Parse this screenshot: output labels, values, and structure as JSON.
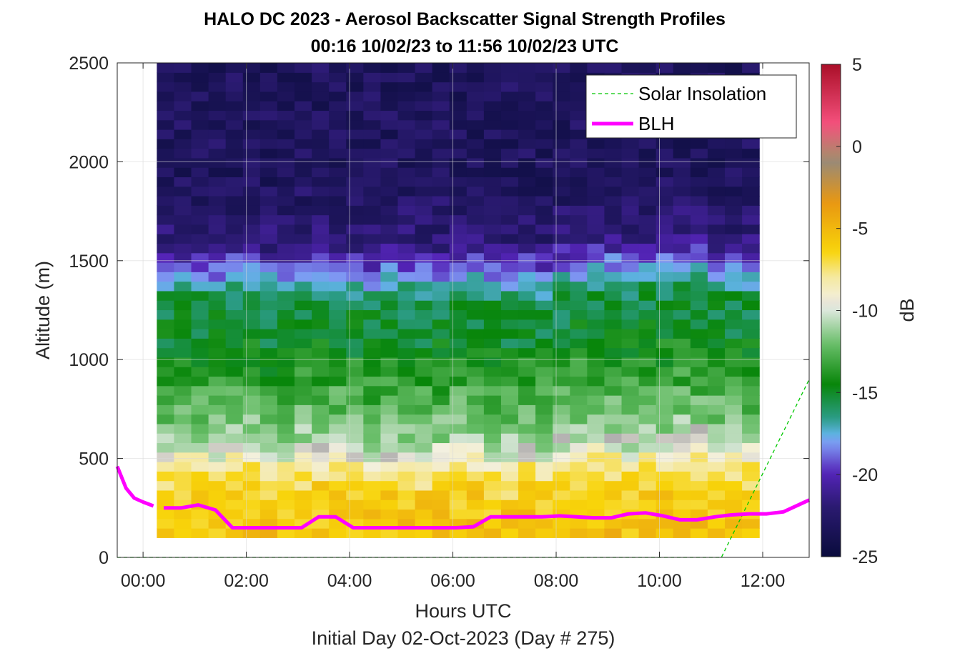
{
  "chart_data": {
    "type": "heatmap",
    "title": "HALO DC 2023 - Aerosol Backscatter Signal Strength Profiles",
    "subtitle": "00:16 10/02/23 to 11:56 10/02/23  UTC",
    "xlabel": "Hours UTC",
    "xlabel2": "Initial Day 02-Oct-2023 (Day # 275)",
    "ylabel": "Altitude (m)",
    "colorbar_label": "dB",
    "xlim": [
      -0.5,
      12.9
    ],
    "ylim": [
      0,
      2500
    ],
    "clim": [
      -25,
      5
    ],
    "grid": true,
    "legend_position": "top-right",
    "x_ticks": [
      0,
      2,
      4,
      6,
      8,
      10,
      12
    ],
    "x_tick_labels": [
      "00:00",
      "02:00",
      "04:00",
      "06:00",
      "08:00",
      "10:00",
      "12:00"
    ],
    "y_ticks": [
      0,
      500,
      1000,
      1500,
      2000,
      2500
    ],
    "y_tick_labels": [
      "0",
      "500",
      "1000",
      "1500",
      "2000",
      "2500"
    ],
    "colorbar_ticks": [
      5,
      0,
      -5,
      -10,
      -15,
      -20,
      -25
    ],
    "colorbar_tick_labels": [
      "5",
      "0",
      "-5",
      "-10",
      "-15",
      "-20",
      "-25"
    ],
    "heatmap": {
      "time_start_hours": 0.2667,
      "time_end_hours": 11.9333,
      "time_bins": 35,
      "altitude_start_m": 100,
      "altitude_end_m": 2500,
      "altitude_bins": 50,
      "profile_dB_by_altitude": [
        [
          100,
          -5.5
        ],
        [
          300,
          -6.0
        ],
        [
          450,
          -8.0
        ],
        [
          550,
          -10.5
        ],
        [
          700,
          -12.0
        ],
        [
          900,
          -13.5
        ],
        [
          1100,
          -15.0
        ],
        [
          1300,
          -15.5
        ],
        [
          1400,
          -17.5
        ],
        [
          1500,
          -20.0
        ],
        [
          1600,
          -22.0
        ],
        [
          1900,
          -23.0
        ],
        [
          2500,
          -23.0
        ]
      ]
    },
    "series": [
      {
        "name": "Solar Insolation",
        "style": "dashed",
        "color": "#00c800",
        "x": [
          -0.5,
          11.2,
          12.9
        ],
        "y": [
          0,
          0,
          900
        ]
      },
      {
        "name": "BLH",
        "style": "solid",
        "color": "#ff00ff",
        "segments": [
          {
            "x": [
              -0.5,
              -0.33,
              -0.17,
              0.0,
              0.2
            ],
            "y": [
              460,
              350,
              300,
              280,
              260
            ]
          },
          {
            "x": [
              0.4,
              0.73,
              1.07,
              1.4,
              1.73,
              2.07,
              2.4,
              2.73,
              3.07,
              3.4,
              3.73,
              4.07,
              4.4,
              4.73,
              5.07,
              5.4,
              5.73,
              6.07,
              6.4,
              6.73,
              7.07,
              7.4,
              7.73,
              8.07,
              8.4,
              8.73,
              9.07,
              9.4,
              9.73,
              10.07,
              10.4,
              10.73,
              11.07,
              11.4,
              11.73,
              12.07,
              12.4,
              12.9
            ],
            "y": [
              250,
              250,
              265,
              240,
              150,
              150,
              150,
              150,
              150,
              205,
              205,
              150,
              150,
              150,
              150,
              150,
              150,
              150,
              155,
              205,
              205,
              205,
              205,
              210,
              205,
              200,
              200,
              220,
              225,
              210,
              190,
              190,
              205,
              215,
              220,
              220,
              230,
              290
            ]
          }
        ]
      }
    ],
    "colormap": [
      [
        0.0,
        "#0a0c3c"
      ],
      [
        0.1,
        "#2a1a70"
      ],
      [
        0.17,
        "#5424b8"
      ],
      [
        0.23,
        "#7f9af4"
      ],
      [
        0.25,
        "#5db2e0"
      ],
      [
        0.28,
        "#2c9c88"
      ],
      [
        0.35,
        "#08860a"
      ],
      [
        0.43,
        "#66bd66"
      ],
      [
        0.5,
        "#dbe7db"
      ],
      [
        0.5,
        "#b0aeae"
      ],
      [
        0.52,
        "#f3f0e0"
      ],
      [
        0.57,
        "#f5e89c"
      ],
      [
        0.62,
        "#f8d40a"
      ],
      [
        0.72,
        "#e89712"
      ],
      [
        0.8,
        "#9b8a74"
      ],
      [
        0.82,
        "#b3856d"
      ],
      [
        0.88,
        "#f4507c"
      ],
      [
        1.0,
        "#aa0f28"
      ]
    ]
  }
}
